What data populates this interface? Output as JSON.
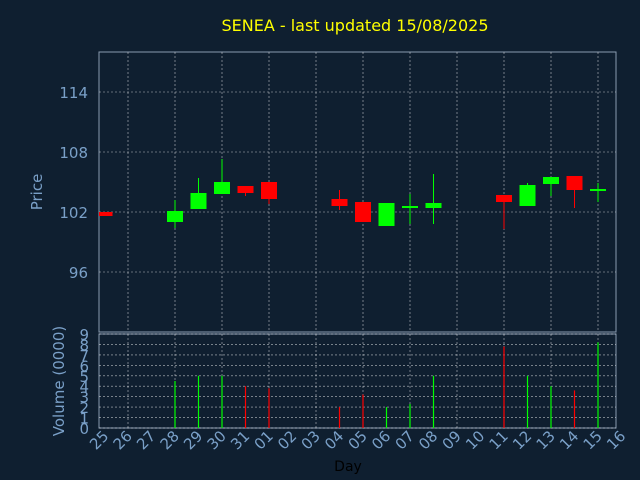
{
  "chart_data": {
    "type": "candlestick",
    "title": "SENEA - last updated 15/08/2025",
    "xlabel": "Day",
    "categories": [
      "25",
      "26",
      "27",
      "28",
      "29",
      "30",
      "31",
      "01",
      "02",
      "03",
      "04",
      "05",
      "06",
      "07",
      "08",
      "09",
      "10",
      "11",
      "12",
      "13",
      "14",
      "15",
      "16"
    ],
    "price_panel": {
      "ylabel": "Price",
      "ylim": [
        90,
        118
      ],
      "yticks": [
        "96",
        "102",
        "108",
        "114"
      ],
      "grid": true
    },
    "volume_panel": {
      "ylabel": "Volume (0000)",
      "ylim": [
        0,
        9
      ],
      "yticks": [
        "0",
        "1",
        "2",
        "3",
        "4",
        "5",
        "6",
        "7",
        "8",
        "9"
      ],
      "grid": true
    },
    "candles": [
      {
        "day": "25",
        "open": 102.0,
        "high": 102.0,
        "low": 101.6,
        "close": 101.6,
        "volume": 0
      },
      {
        "day": "28",
        "open": 101.0,
        "high": 103.2,
        "low": 100.4,
        "close": 102.1,
        "volume": 4.5
      },
      {
        "day": "29",
        "open": 102.3,
        "high": 105.4,
        "low": 102.3,
        "close": 103.9,
        "volume": 5.0
      },
      {
        "day": "30",
        "open": 103.8,
        "high": 107.3,
        "low": 103.8,
        "close": 105.0,
        "volume": 5.0
      },
      {
        "day": "31",
        "open": 104.6,
        "high": 104.6,
        "low": 103.6,
        "close": 103.9,
        "volume": 4.0
      },
      {
        "day": "01",
        "open": 105.0,
        "high": 105.0,
        "low": 102.8,
        "close": 103.3,
        "volume": 3.8
      },
      {
        "day": "04",
        "open": 103.3,
        "high": 104.2,
        "low": 102.2,
        "close": 102.6,
        "volume": 2.0
      },
      {
        "day": "05",
        "open": 103.0,
        "high": 103.0,
        "low": 101.0,
        "close": 101.0,
        "volume": 3.2
      },
      {
        "day": "06",
        "open": 100.6,
        "high": 102.9,
        "low": 100.6,
        "close": 102.9,
        "volume": 2.0
      },
      {
        "day": "07",
        "open": 102.4,
        "high": 103.8,
        "low": 100.8,
        "close": 102.6,
        "volume": 2.3
      },
      {
        "day": "08",
        "open": 102.4,
        "high": 105.8,
        "low": 100.8,
        "close": 102.9,
        "volume": 5.0
      },
      {
        "day": "11",
        "open": 103.7,
        "high": 103.7,
        "low": 100.3,
        "close": 103.0,
        "volume": 7.8
      },
      {
        "day": "12",
        "open": 102.6,
        "high": 104.9,
        "low": 102.6,
        "close": 104.7,
        "volume": 5.0
      },
      {
        "day": "13",
        "open": 104.8,
        "high": 105.5,
        "low": 103.6,
        "close": 105.5,
        "volume": 4.0
      },
      {
        "day": "14",
        "open": 105.6,
        "high": 105.6,
        "low": 102.4,
        "close": 104.2,
        "volume": 3.6
      },
      {
        "day": "15",
        "open": 104.1,
        "high": 104.9,
        "low": 103.0,
        "close": 104.3,
        "volume": 8.2
      }
    ],
    "colors": {
      "background": "#0f1f30",
      "up": "#00ff00",
      "down": "#ff0000",
      "grid": "#ffffff",
      "title": "#ffff00",
      "axis_text": "#7aa0c8"
    }
  }
}
